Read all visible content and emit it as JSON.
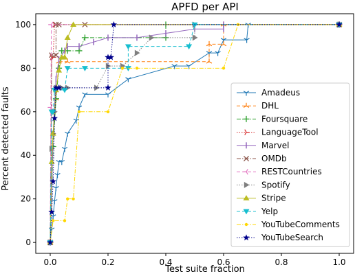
{
  "chart_data": {
    "type": "line",
    "title": "APFD per API",
    "xlabel": "Test suite fraction",
    "ylabel": "Percent detected faults",
    "xlim": [
      -0.05,
      1.05
    ],
    "ylim": [
      -5,
      105
    ],
    "xticks": [
      "0.0",
      "0.2",
      "0.4",
      "0.6",
      "0.8",
      "1.0"
    ],
    "yticks": [
      "0",
      "20",
      "40",
      "60",
      "80",
      "100"
    ],
    "xtick_values": [
      0,
      0.2,
      0.4,
      0.6,
      0.8,
      1.0
    ],
    "ytick_values": [
      0,
      20,
      40,
      60,
      80,
      100
    ],
    "grid": false,
    "legend_position": "center-right",
    "series": [
      {
        "name": "Amadeus",
        "color": "#1f77b4",
        "dash": "solid",
        "marker": "tri_down",
        "points": [
          [
            0,
            0
          ],
          [
            0.005,
            6
          ],
          [
            0.01,
            12
          ],
          [
            0.015,
            19
          ],
          [
            0.02,
            25
          ],
          [
            0.025,
            31
          ],
          [
            0.03,
            37
          ],
          [
            0.04,
            37
          ],
          [
            0.05,
            43
          ],
          [
            0.06,
            50
          ],
          [
            0.09,
            56
          ],
          [
            0.1,
            62
          ],
          [
            0.12,
            68
          ],
          [
            0.2,
            68
          ],
          [
            0.27,
            75
          ],
          [
            0.43,
            81
          ],
          [
            0.48,
            81
          ],
          [
            0.55,
            87
          ],
          [
            0.58,
            87
          ],
          [
            0.6,
            93
          ],
          [
            0.68,
            93
          ],
          [
            0.685,
            100
          ],
          [
            1.0,
            100
          ]
        ]
      },
      {
        "name": "DHL",
        "color": "#ff7f0e",
        "dash": "dash",
        "marker": "tri_up",
        "points": [
          [
            0,
            0
          ],
          [
            0.01,
            50
          ],
          [
            0.02,
            66
          ],
          [
            0.03,
            83
          ],
          [
            0.06,
            83
          ],
          [
            0.55,
            83
          ],
          [
            0.55,
            91
          ],
          [
            0.6,
            91
          ],
          [
            0.6,
            100
          ],
          [
            1.0,
            100
          ]
        ]
      },
      {
        "name": "Foursquare",
        "color": "#2ca02c",
        "dash": "dashdot",
        "marker": "plus",
        "points": [
          [
            0,
            0
          ],
          [
            0.01,
            44
          ],
          [
            0.02,
            66
          ],
          [
            0.03,
            80
          ],
          [
            0.04,
            88
          ],
          [
            0.06,
            88
          ],
          [
            0.1,
            88
          ],
          [
            0.12,
            94
          ],
          [
            0.4,
            94
          ],
          [
            0.4,
            100
          ],
          [
            1.0,
            100
          ]
        ]
      },
      {
        "name": "LanguageTool",
        "color": "#d62728",
        "dash": "dot",
        "marker": "tri_right",
        "points": [
          [
            0,
            0
          ],
          [
            0.005,
            85
          ],
          [
            0.01,
            85
          ],
          [
            0.015,
            100
          ],
          [
            1.0,
            100
          ]
        ]
      },
      {
        "name": "Marvel",
        "color": "#9467bd",
        "dash": "solid",
        "marker": "vline",
        "points": [
          [
            0,
            0
          ],
          [
            0.01,
            50
          ],
          [
            0.02,
            75
          ],
          [
            0.03,
            84
          ],
          [
            0.05,
            88
          ],
          [
            0.06,
            90
          ],
          [
            0.1,
            90
          ],
          [
            0.15,
            92
          ],
          [
            0.2,
            94
          ],
          [
            0.3,
            94
          ],
          [
            0.4,
            96
          ],
          [
            0.5,
            98
          ],
          [
            0.6,
            98
          ],
          [
            0.6,
            100
          ],
          [
            1.0,
            100
          ]
        ]
      },
      {
        "name": "OMDb",
        "color": "#8c564b",
        "dash": "dashdot",
        "marker": "x",
        "points": [
          [
            0,
            0
          ],
          [
            0.005,
            86
          ],
          [
            0.02,
            86
          ],
          [
            0.02,
            100
          ],
          [
            0.03,
            100
          ],
          [
            0.12,
            100
          ],
          [
            1.0,
            100
          ]
        ]
      },
      {
        "name": "RESTCountries",
        "color": "#e377c2",
        "dash": "dash",
        "marker": "tri_left",
        "points": [
          [
            0,
            0
          ],
          [
            0.002,
            62
          ],
          [
            0.004,
            100
          ],
          [
            1.0,
            100
          ]
        ]
      },
      {
        "name": "Spotify",
        "color": "#7f7f7f",
        "dash": "dot",
        "marker": "triangle_right",
        "points": [
          [
            0,
            0
          ],
          [
            0.005,
            43
          ],
          [
            0.01,
            50
          ],
          [
            0.015,
            60
          ],
          [
            0.02,
            71
          ],
          [
            0.04,
            71
          ],
          [
            0.06,
            71
          ],
          [
            0.16,
            71
          ],
          [
            0.2,
            81
          ],
          [
            0.25,
            81
          ],
          [
            0.3,
            87
          ],
          [
            0.35,
            94
          ],
          [
            0.5,
            94
          ],
          [
            0.5,
            100
          ],
          [
            1.0,
            100
          ]
        ]
      },
      {
        "name": "Stripe",
        "color": "#bcbd22",
        "dash": "solid",
        "marker": "triangle_up",
        "points": [
          [
            0,
            0
          ],
          [
            0.005,
            37
          ],
          [
            0.01,
            50
          ],
          [
            0.02,
            70
          ],
          [
            0.03,
            79
          ],
          [
            0.04,
            85
          ],
          [
            0.05,
            85
          ],
          [
            0.06,
            94
          ],
          [
            0.08,
            100
          ],
          [
            1.0,
            100
          ]
        ]
      },
      {
        "name": "Yelp",
        "color": "#17becf",
        "dash": "dash",
        "marker": "triangle_down",
        "points": [
          [
            0,
            0
          ],
          [
            0.005,
            60
          ],
          [
            0.01,
            60
          ],
          [
            0.015,
            70
          ],
          [
            0.05,
            70
          ],
          [
            0.06,
            80
          ],
          [
            0.12,
            80
          ],
          [
            0.27,
            80
          ],
          [
            0.27,
            90
          ],
          [
            0.48,
            90
          ],
          [
            0.5,
            100
          ],
          [
            1.0,
            100
          ]
        ]
      },
      {
        "name": "YouTubeComments",
        "color": "#ffd700",
        "dash": "dashdot",
        "marker": "point",
        "points": [
          [
            0,
            0
          ],
          [
            0.01,
            10
          ],
          [
            0.05,
            10
          ],
          [
            0.06,
            20
          ],
          [
            0.08,
            20
          ],
          [
            0.1,
            60
          ],
          [
            0.2,
            60
          ],
          [
            0.25,
            80
          ],
          [
            0.3,
            80
          ],
          [
            0.6,
            80
          ],
          [
            0.65,
            100
          ],
          [
            1.0,
            100
          ]
        ]
      },
      {
        "name": "YouTubeSearch",
        "color": "#00008b",
        "dash": "dot",
        "marker": "star",
        "points": [
          [
            0,
            0
          ],
          [
            0.005,
            14
          ],
          [
            0.01,
            28
          ],
          [
            0.015,
            57
          ],
          [
            0.02,
            71
          ],
          [
            0.03,
            71
          ],
          [
            0.2,
            71
          ],
          [
            0.2,
            85
          ],
          [
            0.21,
            85
          ],
          [
            0.22,
            100
          ],
          [
            1.0,
            100
          ]
        ]
      }
    ]
  }
}
